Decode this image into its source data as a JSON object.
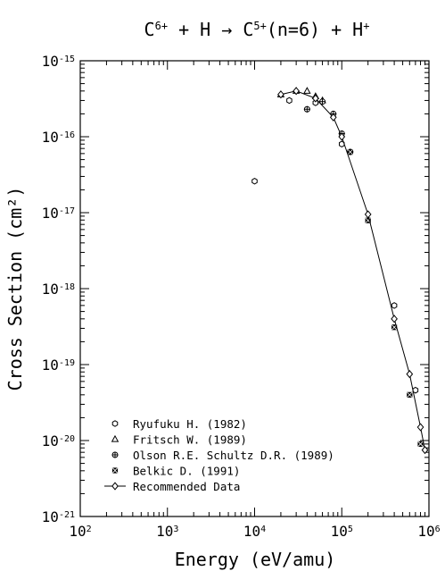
{
  "chart_data": {
    "type": "scatter",
    "title": {
      "parts": [
        {
          "t": "C",
          "k": "n"
        },
        {
          "t": "6+",
          "k": "sup"
        },
        {
          "t": " + H → C",
          "k": "n"
        },
        {
          "t": "5+",
          "k": "sup"
        },
        {
          "t": "(n=6) + H",
          "k": "n"
        },
        {
          "t": "+",
          "k": "sup"
        }
      ]
    },
    "xlabel": "Energy (eV/amu)",
    "ylabel": "Cross Section (cm²)",
    "x_scale": "log",
    "y_scale": "log",
    "xlim": [
      100,
      1000000
    ],
    "ylim": [
      1e-21,
      1e-15
    ],
    "x_ticks": [
      {
        "value": 100,
        "base": "10",
        "exp": "2"
      },
      {
        "value": 1000,
        "base": "10",
        "exp": "3"
      },
      {
        "value": 10000,
        "base": "10",
        "exp": "4"
      },
      {
        "value": 100000,
        "base": "10",
        "exp": "5"
      },
      {
        "value": 1000000,
        "base": "10",
        "exp": "6"
      }
    ],
    "y_ticks": [
      {
        "value": 1e-15,
        "base": "10",
        "exp": "-15"
      },
      {
        "value": 1e-16,
        "base": "10",
        "exp": "-16"
      },
      {
        "value": 1e-17,
        "base": "10",
        "exp": "-17"
      },
      {
        "value": 1e-18,
        "base": "10",
        "exp": "-18"
      },
      {
        "value": 1e-19,
        "base": "10",
        "exp": "-19"
      },
      {
        "value": 1e-20,
        "base": "10",
        "exp": "-20"
      },
      {
        "value": 1e-21,
        "base": "10",
        "exp": "-21"
      }
    ],
    "grid": false,
    "legend_position": "bottom-left",
    "series": [
      {
        "name": "Ryufuku H. (1982)",
        "marker": "hexagon",
        "x": [
          10000,
          25000,
          50000,
          100000,
          400000,
          700000
        ],
        "y": [
          2.6e-17,
          3e-16,
          2.8e-16,
          8e-17,
          6e-19,
          4.6e-20
        ]
      },
      {
        "name": "Fritsch W. (1989)",
        "marker": "triangle",
        "x": [
          20000,
          30000,
          40000,
          50000,
          60000
        ],
        "y": [
          3.6e-16,
          4e-16,
          4e-16,
          3.4e-16,
          3e-16
        ]
      },
      {
        "name": "Olson R.E. Schultz D.R. (1989)",
        "marker": "circle-plus",
        "x": [
          40000,
          60000,
          80000,
          100000,
          125000
        ],
        "y": [
          2.3e-16,
          2.9e-16,
          2e-16,
          1.1e-16,
          6.3e-17
        ]
      },
      {
        "name": "Belkic D. (1991)",
        "marker": "cross-box",
        "x": [
          125000,
          200000,
          400000,
          600000,
          800000
        ],
        "y": [
          6.3e-17,
          7.9e-18,
          3.1e-19,
          4e-20,
          9e-21
        ]
      },
      {
        "name": "Recommended Data",
        "marker": "diamond",
        "line": true,
        "x": [
          20000,
          30000,
          50000,
          80000,
          100000,
          200000,
          400000,
          600000,
          800000,
          900000
        ],
        "y": [
          3.6e-16,
          4e-16,
          3.2e-16,
          1.8e-16,
          1e-16,
          9.5e-18,
          4e-19,
          7.5e-20,
          1.5e-20,
          7.5e-21
        ]
      }
    ]
  }
}
